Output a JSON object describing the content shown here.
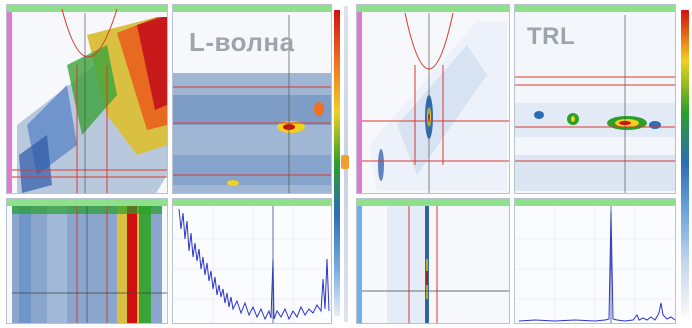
{
  "left_panel": {
    "title": "L-волна",
    "colorbar_colors": [
      "#e8eef8",
      "#6fa8dc",
      "#2d6db5",
      "#2aa02a",
      "#f0d020",
      "#f07020",
      "#d01010"
    ]
  },
  "right_panel": {
    "title": "TRL",
    "colorbar_colors": [
      "#f8f8f8",
      "#c8d8ee",
      "#6fa8dc",
      "#2d6db5",
      "#2aa02a",
      "#f0d020",
      "#d01010"
    ]
  },
  "cursor_colors": {
    "red": "#d93a2f",
    "blue": "#3d4c9e",
    "dark": "#404040"
  },
  "pane_header_color": "#8fe08a",
  "axis_strip_color": "#e07ad0"
}
